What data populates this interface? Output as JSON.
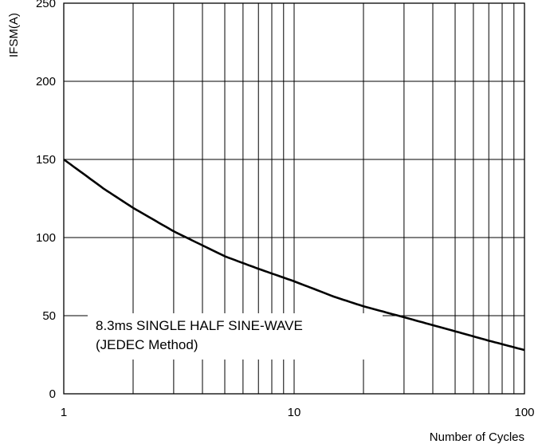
{
  "chart_data": {
    "type": "line",
    "title": "",
    "xlabel": "Number of Cycles",
    "ylabel": "IFSM(A)",
    "xscale": "log",
    "xlim": [
      1,
      100
    ],
    "ylim": [
      0,
      250
    ],
    "x_tick_labels": [
      "1",
      "10",
      "100"
    ],
    "y_tick_labels": [
      "0",
      "50",
      "100",
      "150",
      "200",
      "250"
    ],
    "x_ticks": [
      1,
      10,
      100
    ],
    "y_ticks": [
      0,
      50,
      100,
      150,
      200,
      250
    ],
    "x_minor_gridlines": [
      2,
      3,
      4,
      5,
      6,
      7,
      8,
      9,
      20,
      30,
      40,
      50,
      60,
      70,
      80,
      90
    ],
    "grid": true,
    "annotation": {
      "line1": "8.3ms SINGLE HALF SINE-WAVE",
      "line2": "(JEDEC Method)"
    },
    "series": [
      {
        "x": [
          1,
          1.5,
          2,
          3,
          4,
          5,
          7,
          10,
          15,
          20,
          30,
          50,
          70,
          100
        ],
        "values": [
          150,
          131,
          119,
          104,
          95,
          88,
          80,
          72,
          62,
          56,
          49,
          40,
          34,
          28
        ],
        "color": "#000000"
      }
    ]
  }
}
